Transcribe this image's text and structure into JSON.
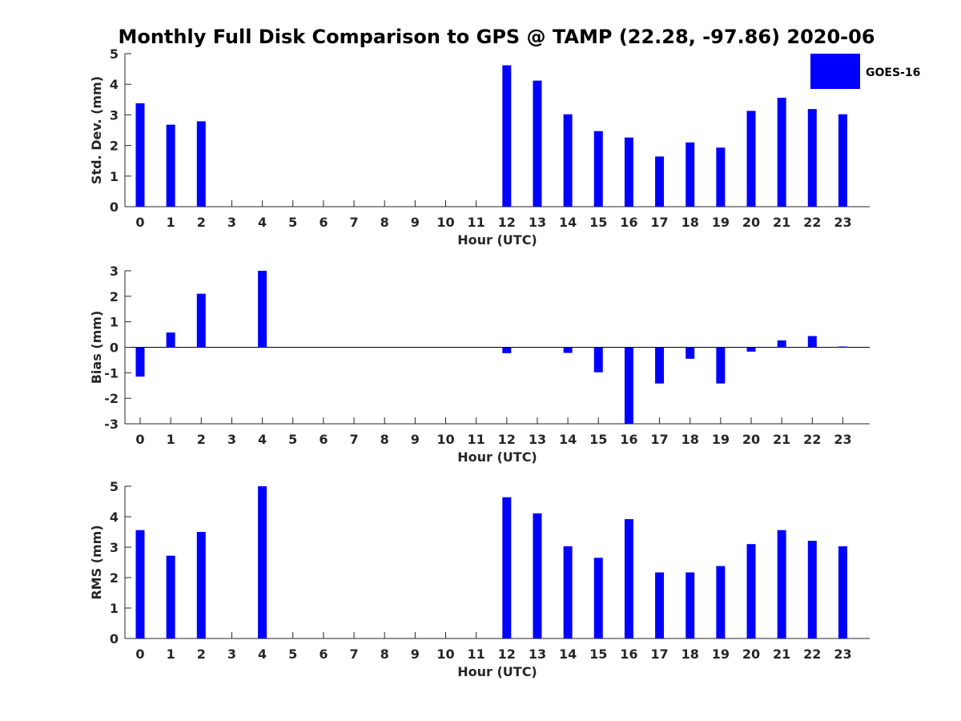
{
  "figure": {
    "title": "Monthly Full Disk Comparison to GPS @ TAMP (22.28, -97.86) 2020-06",
    "legend": {
      "label": "GOES-16",
      "color": "#0000ff",
      "placement": "top-right"
    }
  },
  "chart_data": [
    {
      "type": "bar",
      "xlabel": "Hour (UTC)",
      "ylabel": "Std. Dev. (mm)",
      "ylim": [
        0,
        5
      ],
      "yticks": [
        0,
        1,
        2,
        3,
        4,
        5
      ],
      "categories": [
        "0",
        "1",
        "2",
        "3",
        "4",
        "5",
        "6",
        "7",
        "8",
        "9",
        "10",
        "11",
        "12",
        "13",
        "14",
        "15",
        "16",
        "17",
        "18",
        "19",
        "20",
        "21",
        "22",
        "23"
      ],
      "series": [
        {
          "name": "GOES-16",
          "color": "#0000ff",
          "values": [
            3.38,
            2.68,
            2.79,
            null,
            null,
            null,
            null,
            null,
            null,
            null,
            null,
            null,
            4.62,
            4.12,
            3.02,
            2.47,
            2.26,
            1.64,
            2.1,
            1.93,
            3.13,
            3.56,
            3.19,
            3.02
          ]
        }
      ]
    },
    {
      "type": "bar",
      "xlabel": "Hour (UTC)",
      "ylabel": "Bias (mm)",
      "ylim": [
        -3,
        3
      ],
      "yticks": [
        -3,
        -2,
        -1,
        0,
        1,
        2,
        3
      ],
      "categories": [
        "0",
        "1",
        "2",
        "3",
        "4",
        "5",
        "6",
        "7",
        "8",
        "9",
        "10",
        "11",
        "12",
        "13",
        "14",
        "15",
        "16",
        "17",
        "18",
        "19",
        "20",
        "21",
        "22",
        "23"
      ],
      "series": [
        {
          "name": "GOES-16",
          "color": "#0000ff",
          "values": [
            -1.15,
            0.58,
            2.1,
            null,
            3.0,
            null,
            null,
            null,
            null,
            null,
            null,
            null,
            -0.23,
            null,
            -0.22,
            -0.98,
            -3.0,
            -1.42,
            -0.45,
            -1.42,
            -0.17,
            0.27,
            0.44,
            0.03
          ]
        }
      ]
    },
    {
      "type": "bar",
      "xlabel": "Hour (UTC)",
      "ylabel": "RMS (mm)",
      "ylim": [
        0,
        5
      ],
      "yticks": [
        0,
        1,
        2,
        3,
        4,
        5
      ],
      "categories": [
        "0",
        "1",
        "2",
        "3",
        "4",
        "5",
        "6",
        "7",
        "8",
        "9",
        "10",
        "11",
        "12",
        "13",
        "14",
        "15",
        "16",
        "17",
        "18",
        "19",
        "20",
        "21",
        "22",
        "23"
      ],
      "series": [
        {
          "name": "GOES-16",
          "color": "#0000ff",
          "values": [
            3.56,
            2.72,
            3.5,
            null,
            5.0,
            null,
            null,
            null,
            null,
            null,
            null,
            null,
            4.64,
            4.11,
            3.03,
            2.65,
            3.92,
            2.17,
            2.17,
            2.38,
            3.1,
            3.56,
            3.21,
            3.03
          ]
        }
      ]
    }
  ]
}
